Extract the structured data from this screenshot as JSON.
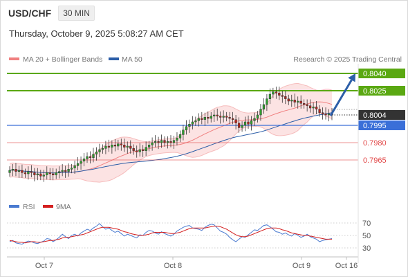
{
  "header": {
    "symbol": "USD/CHF",
    "interval": "30 MIN"
  },
  "timestamp": "Thursday, October 9, 2025 5:08:27 AM CET",
  "legend": {
    "ma20": "MA 20 + Bollinger Bands",
    "ma50": "MA 50",
    "research": "Research © 2025 Trading Central"
  },
  "rsi_legend": {
    "rsi": "RSI",
    "ma9": "9MA"
  },
  "colors": {
    "resistance": "#5aa812",
    "pivot": "#3a6fd8",
    "support": "#e24a4a",
    "ma20": "#f08080",
    "ma50": "#2c5ea8",
    "rsi": "#4a7ad0",
    "rsi_ma": "#d42020",
    "arrow": "#2c5ea8"
  },
  "chart_data": [
    {
      "type": "candlestick",
      "ylim": [
        0.7945,
        0.805
      ],
      "x_labels": [
        "Oct 7",
        "Oct 8",
        "Oct 9",
        "Oct 16"
      ],
      "current_price": "0.8004",
      "levels": [
        {
          "value": "0.8040",
          "kind": "resistance"
        },
        {
          "value": "0.8025",
          "kind": "resistance"
        },
        {
          "value": "0.7995",
          "kind": "pivot"
        },
        {
          "value": "0.7980",
          "kind": "support"
        },
        {
          "value": "0.7965",
          "kind": "support"
        }
      ],
      "close": [
        0.7956,
        0.7957,
        0.7955,
        0.7956,
        0.7954,
        0.7953,
        0.7955,
        0.7954,
        0.7952,
        0.7953,
        0.7951,
        0.7952,
        0.7954,
        0.7953,
        0.7952,
        0.7954,
        0.7955,
        0.7956,
        0.7955,
        0.7957,
        0.7958,
        0.796,
        0.7962,
        0.7964,
        0.7966,
        0.7968,
        0.7967,
        0.797,
        0.7972,
        0.7974,
        0.7975,
        0.7977,
        0.7976,
        0.7978,
        0.7977,
        0.7979,
        0.7978,
        0.7976,
        0.7977,
        0.7975,
        0.7973,
        0.7972,
        0.7974,
        0.7973,
        0.7976,
        0.7978,
        0.798,
        0.7981,
        0.798,
        0.7982,
        0.798,
        0.7981,
        0.798,
        0.7982,
        0.7984,
        0.7987,
        0.7991,
        0.7994,
        0.7996,
        0.7998,
        0.7999,
        0.8001,
        0.8,
        0.8002,
        0.8001,
        0.8003,
        0.8004,
        0.8003,
        0.8002,
        0.8003,
        0.8002,
        0.8001,
        0.8,
        0.7997,
        0.7993,
        0.7995,
        0.7998,
        0.7996,
        0.7999,
        0.8001,
        0.8004,
        0.8009,
        0.8013,
        0.8018,
        0.8022,
        0.8024,
        0.8023,
        0.8021,
        0.802,
        0.8018,
        0.8016,
        0.8017,
        0.8015,
        0.8016,
        0.8014,
        0.8013,
        0.8012,
        0.801,
        0.8011,
        0.8009,
        0.8006,
        0.8005,
        0.8004,
        0.8005,
        0.8004
      ],
      "rsi": {
        "ticks": [
          70,
          50,
          30
        ],
        "values": [
          40,
          42,
          38,
          37,
          36,
          39,
          41,
          40,
          38,
          37,
          39,
          41,
          45,
          44,
          40,
          43,
          47,
          52,
          48,
          45,
          50,
          52,
          49,
          54,
          57,
          60,
          58,
          62,
          65,
          69,
          64,
          60,
          62,
          58,
          55,
          57,
          53,
          49,
          52,
          50,
          48,
          46,
          51,
          50,
          55,
          58,
          57,
          54,
          52,
          56,
          53,
          51,
          49,
          52,
          57,
          60,
          63,
          65,
          66,
          62,
          61,
          60,
          58,
          63,
          66,
          68,
          67,
          62,
          57,
          55,
          52,
          47,
          43,
          40,
          44,
          48,
          47,
          51,
          55,
          59,
          58,
          62,
          66,
          67,
          64,
          60,
          56,
          55,
          52,
          54,
          51,
          49,
          53,
          50,
          47,
          49,
          52,
          48,
          46,
          44,
          40,
          42,
          43,
          44,
          45
        ],
        "ma": [
          42,
          41,
          40,
          39,
          39,
          38,
          39,
          40,
          40,
          39,
          39,
          40,
          41,
          42,
          42,
          43,
          44,
          46,
          47,
          47,
          48,
          49,
          50,
          51,
          52,
          54,
          56,
          58,
          60,
          62,
          63,
          63,
          63,
          62,
          61,
          60,
          58,
          56,
          55,
          53,
          52,
          51,
          50,
          50,
          51,
          52,
          54,
          55,
          55,
          55,
          55,
          54,
          53,
          53,
          54,
          55,
          57,
          59,
          61,
          62,
          62,
          62,
          62,
          62,
          63,
          64,
          65,
          65,
          64,
          62,
          60,
          57,
          54,
          51,
          49,
          48,
          48,
          49,
          51,
          53,
          55,
          57,
          59,
          61,
          62,
          62,
          62,
          61,
          59,
          58,
          56,
          54,
          53,
          52,
          51,
          50,
          50,
          49,
          48,
          47,
          46,
          45,
          44,
          44,
          44
        ]
      }
    }
  ]
}
